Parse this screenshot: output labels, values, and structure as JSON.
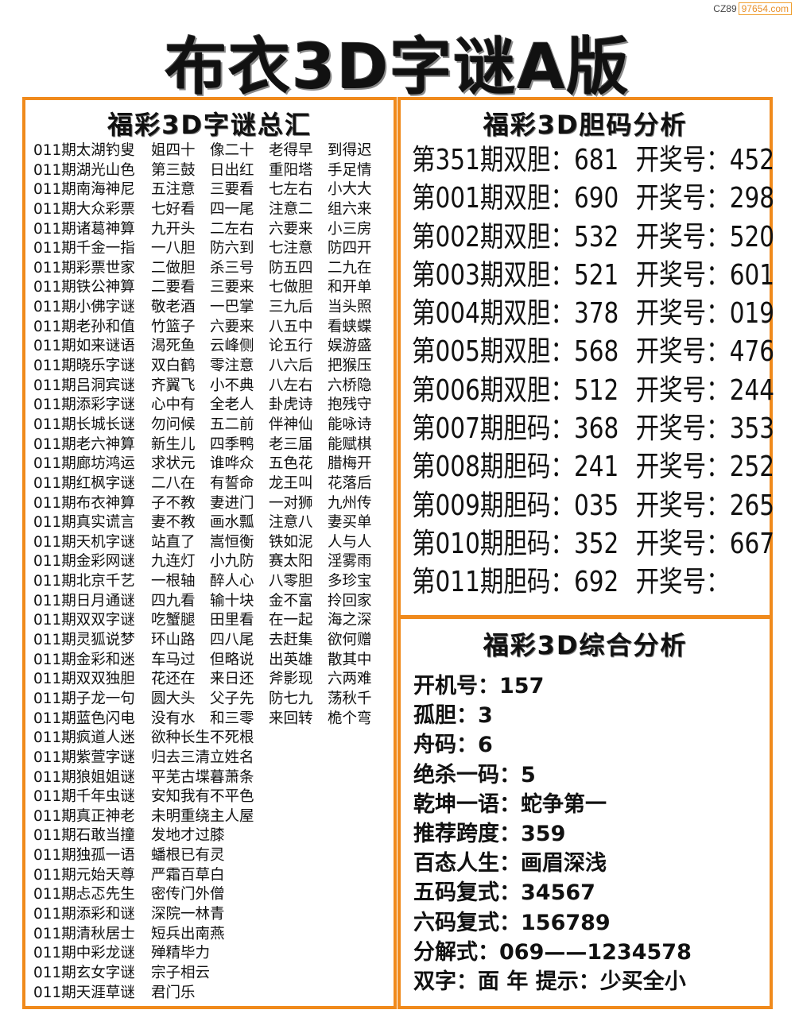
{
  "watermark": {
    "prefix": "CZ89",
    "site": "97654.com"
  },
  "title": "布衣3D字谜A版",
  "left": {
    "heading": "福彩3D字谜总汇",
    "rows": [
      [
        "011期太湖钓叟",
        "姐四十",
        "像二十",
        "老得早",
        "到得迟"
      ],
      [
        "011期湖光山色",
        "第三鼓",
        "日出红",
        "重阳塔",
        "手足情"
      ],
      [
        "011期南海神尼",
        "五注意",
        "三要看",
        "七左右",
        "小大大"
      ],
      [
        "011期大众彩票",
        "七好看",
        "四一尾",
        "注意二",
        "组六来"
      ],
      [
        "011期诸葛神算",
        "九开头",
        "二左右",
        "六要来",
        "小三房"
      ],
      [
        "011期千金一指",
        "一八胆",
        "防六到",
        "七注意",
        "防四开"
      ],
      [
        "011期彩票世家",
        "二做胆",
        "杀三号",
        "防五四",
        "二九在"
      ],
      [
        "011期铁公神算",
        "二要看",
        "三要来",
        "七做胆",
        "和开单"
      ],
      [
        "011期小佛字谜",
        "敬老酒",
        "一巴掌",
        "三九后",
        "当头照"
      ],
      [
        "011期老孙和值",
        "竹篮子",
        "六要来",
        "八五中",
        "看蛱蝶"
      ],
      [
        "011期如来谜语",
        "渴死鱼",
        "云峰侧",
        "论五行",
        "娱游盛"
      ],
      [
        "011期晓乐字谜",
        "双白鹤",
        "零注意",
        "八六后",
        "把猴压"
      ],
      [
        "011期吕洞宾谜",
        "齐翼飞",
        "小不典",
        "八左右",
        "六桥隐"
      ],
      [
        "011期添彩字谜",
        "心中有",
        "全老人",
        "卦虎诗",
        "抱残守"
      ],
      [
        "011期长城长谜",
        "勿问候",
        "五二前",
        "伴神仙",
        "能咏诗"
      ],
      [
        "011期老六神算",
        "新生儿",
        "四季鸭",
        "老三届",
        "能赋棋"
      ],
      [
        "011期廊坊鸿运",
        "求状元",
        "谁哗众",
        "五色花",
        "腊梅开"
      ],
      [
        "011期红枫字谜",
        "二八在",
        "有誓命",
        "龙王叫",
        "花落后"
      ],
      [
        "011期布衣神算",
        "子不教",
        "妻进门",
        "一对狮",
        "九州传"
      ],
      [
        "011期真实谎言",
        "妻不教",
        "画水瓢",
        "注意八",
        "妻买单"
      ],
      [
        "011期天机字谜",
        "站直了",
        "嵩恒衡",
        "铁如泥",
        "人与人"
      ],
      [
        "011期金彩网谜",
        "九连灯",
        "小九防",
        "赛太阳",
        "淫雾雨"
      ],
      [
        "011期北京千艺",
        "一根轴",
        "醉人心",
        "八零胆",
        "多珍宝"
      ],
      [
        "011期日月通谜",
        "四九看",
        "输十块",
        "金不富",
        "拎回家"
      ],
      [
        "011期双双字谜",
        "吃蟹腿",
        "田里看",
        "在一起",
        "海之深"
      ],
      [
        "011期灵狐说梦",
        "环山路",
        "四八尾",
        "去赶集",
        "欲何赠"
      ],
      [
        "011期金彩和迷",
        "车马过",
        "但略说",
        "出英雄",
        "散其中"
      ],
      [
        "011期双双独胆",
        "花还在",
        "来日还",
        "斧影现",
        "六两难"
      ],
      [
        "011期子龙一句",
        "圆大头",
        "父子先",
        "防七九",
        "荡秋千"
      ],
      [
        "011期蓝色闪电",
        "没有水",
        "和三零",
        "来回转",
        "桅个弯"
      ],
      [
        "011期疯道人迷",
        "欲种长生不死根"
      ],
      [
        "011期紫萱字谜",
        "归去三清立姓名"
      ],
      [
        "011期狼姐姐谜",
        "平芜古堞暮萧条"
      ],
      [
        "011期千年虫谜",
        "安知我有不平色"
      ],
      [
        "011期真正神老",
        "未明重绕主人屋"
      ],
      [
        "011期石敢当撞",
        "发地才过膝"
      ],
      [
        "011期独孤一语",
        "蟠根已有灵"
      ],
      [
        "011期元始天尊",
        "严霜百草白"
      ],
      [
        "011期忐忑先生",
        "密传门外僧"
      ],
      [
        "011期添彩和谜",
        "深院一林青"
      ],
      [
        "011期清秋居士",
        "短兵出南燕"
      ],
      [
        "011期中彩龙谜",
        "殚精毕力"
      ],
      [
        "011期玄女字谜",
        "宗子相云"
      ],
      [
        "011期天涯草谜",
        "君门乐"
      ]
    ]
  },
  "danma": {
    "heading": "福彩3D胆码分析",
    "rows": [
      [
        "第351期双胆：681",
        "开奖号：452"
      ],
      [
        "第001期双胆：690",
        "开奖号：298"
      ],
      [
        "第002期双胆：532",
        "开奖号：520"
      ],
      [
        "第003期双胆：521",
        "开奖号：601"
      ],
      [
        "第004期双胆：378",
        "开奖号：019"
      ],
      [
        "第005期双胆：568",
        "开奖号：476"
      ],
      [
        "第006期双胆：512",
        "开奖号：244"
      ],
      [
        "第007期胆码：368",
        "开奖号：353"
      ],
      [
        "第008期胆码：241",
        "开奖号：252"
      ],
      [
        "第009期胆码：035",
        "开奖号：265"
      ],
      [
        "第010期胆码：352",
        "开奖号：667"
      ],
      [
        "第011期胆码：692",
        "开奖号："
      ]
    ]
  },
  "analysis": {
    "heading": "福彩3D综合分析",
    "rows": [
      "开机号：157",
      "孤胆：3",
      "舟码：6",
      "绝杀一码：5",
      "乾坤一语：蛇争第一",
      "推荐跨度：359",
      "百态人生：画眉深浅",
      "五码复式：34567",
      "六码复式：156789",
      "分解式：069——1234578",
      "双字：面 年 提示：少买全小"
    ]
  },
  "colors": {
    "border": "#f08a1c"
  }
}
